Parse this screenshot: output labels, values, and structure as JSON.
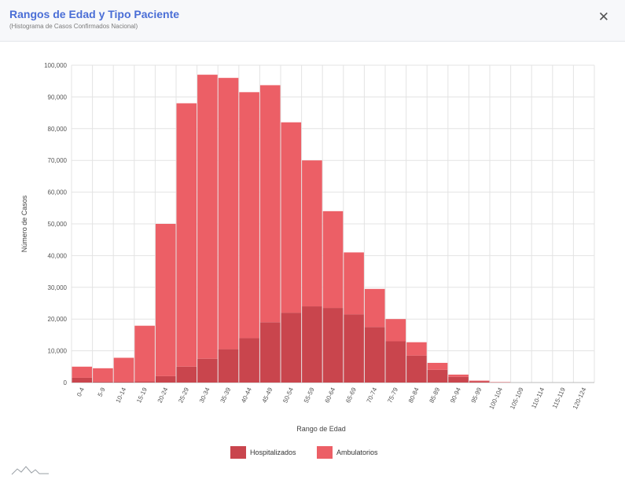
{
  "header": {
    "title": "Rangos de Edad y Tipo Paciente",
    "subtitle": "(Histograma de Casos Confirmados Nacional)",
    "close_icon": "close-icon"
  },
  "colors": {
    "hospitalizados": "#c9454d",
    "ambulatorios": "#ec5f66",
    "grid": "#e3e3e3"
  },
  "chart_data": {
    "type": "bar",
    "stacked": true,
    "xlabel": "Rango de Edad",
    "ylabel": "Número de Casos",
    "ylim": [
      0,
      100000
    ],
    "yticks": [
      0,
      10000,
      20000,
      30000,
      40000,
      50000,
      60000,
      70000,
      80000,
      90000,
      100000
    ],
    "ytick_labels": [
      "0",
      "10,000",
      "20,000",
      "30,000",
      "40,000",
      "50,000",
      "60,000",
      "70,000",
      "80,000",
      "90,000",
      "100,000"
    ],
    "grid": true,
    "legend_position": "bottom-center",
    "categories": [
      "0-4",
      "5-9",
      "10-14",
      "15-19",
      "20-24",
      "25-29",
      "30-34",
      "35-39",
      "40-44",
      "45-49",
      "50-54",
      "55-59",
      "60-64",
      "65-69",
      "70-74",
      "75-79",
      "80-84",
      "85-89",
      "90-94",
      "95-99",
      "100-104",
      "105-109",
      "110-114",
      "115-119",
      "120-124"
    ],
    "series": [
      {
        "name": "Hospitalizados",
        "values": [
          1500,
          300,
          300,
          400,
          2000,
          5000,
          7500,
          10500,
          14000,
          19000,
          22000,
          24000,
          23500,
          21500,
          17500,
          13000,
          8500,
          4000,
          1800,
          400,
          50,
          0,
          0,
          0,
          0
        ]
      },
      {
        "name": "Ambulatorios",
        "values": [
          3500,
          4200,
          7500,
          17500,
          48000,
          83000,
          89500,
          85500,
          77500,
          74700,
          60000,
          46000,
          30500,
          19500,
          12000,
          7000,
          4200,
          2200,
          700,
          200,
          100,
          0,
          0,
          0,
          0
        ]
      }
    ]
  },
  "legend": {
    "items": [
      "Hospitalizados",
      "Ambulatorios"
    ]
  }
}
